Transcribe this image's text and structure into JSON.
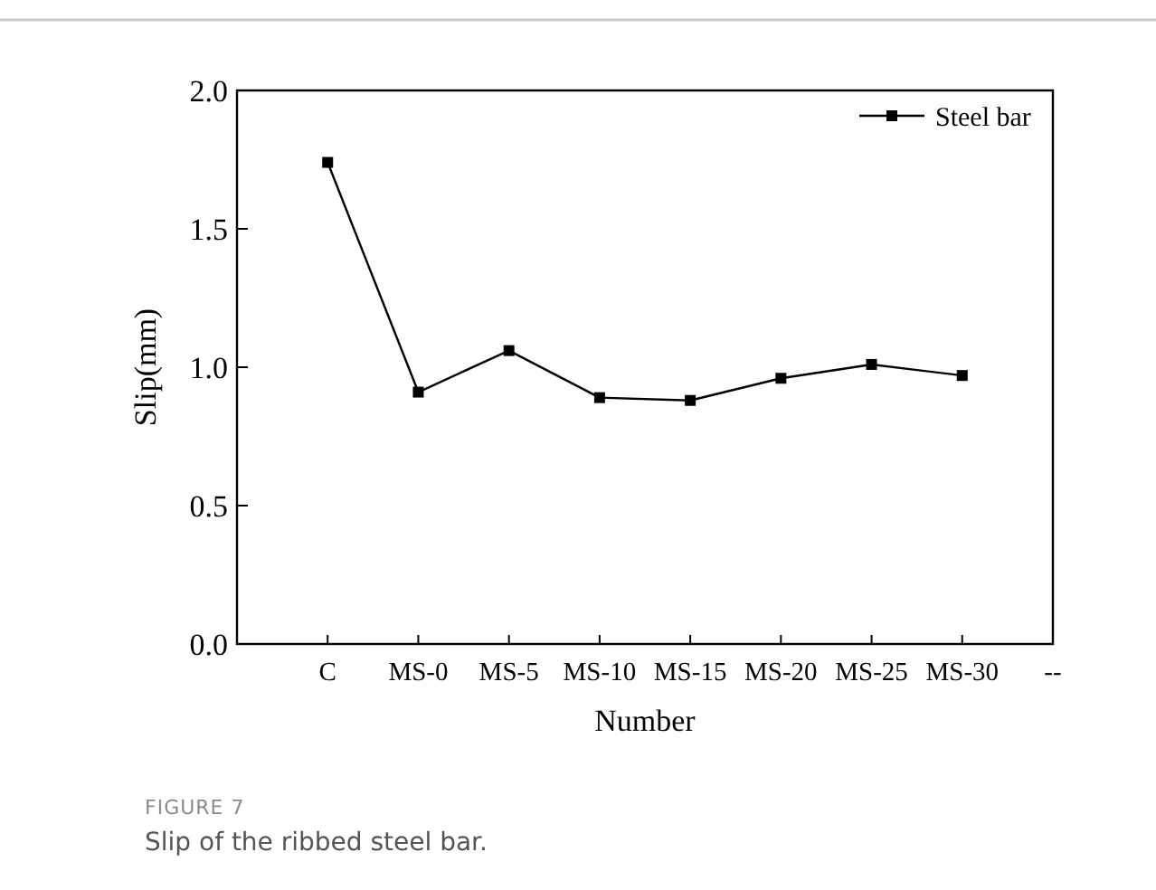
{
  "chart_data": {
    "type": "line",
    "xlabel": "Number",
    "ylabel": "Slip(mm)",
    "categories": [
      null,
      "C",
      "MS-0",
      "MS-5",
      "MS-10",
      "MS-15",
      "MS-20",
      "MS-25",
      "MS-30",
      "--"
    ],
    "series": [
      {
        "name": "Steel bar",
        "color": "#000000",
        "values": [
          null,
          1.74,
          0.91,
          1.06,
          0.89,
          0.88,
          0.96,
          1.01,
          0.97,
          null
        ]
      }
    ],
    "ylim": [
      0,
      2
    ],
    "yticks": [
      {
        "value": 0,
        "label": "0.0"
      },
      {
        "value": 0.5,
        "label": "0.5"
      },
      {
        "value": 1,
        "label": "1.0"
      },
      {
        "value": 1.5,
        "label": "1.5"
      },
      {
        "value": 2,
        "label": "2.0"
      }
    ],
    "legend": "top right",
    "marker": "square",
    "grid": false,
    "annotations": [
      "FIGURE 7",
      "Slip of the ribbed steel bar."
    ]
  }
}
